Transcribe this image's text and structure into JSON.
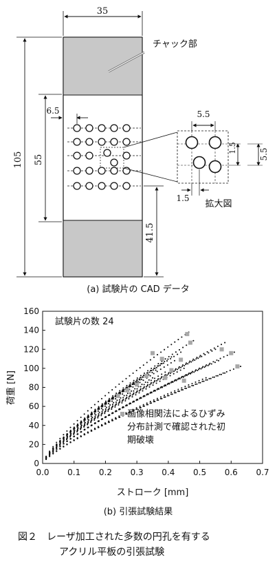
{
  "figure_a": {
    "dimensions": {
      "width": "35",
      "height": "105",
      "hole_region": "55",
      "offset_left": "6.5",
      "offset_bottom": "41.5",
      "detail_pitch": "5.5",
      "detail_hole_gap": "1.5",
      "detail_right_small": "1.5",
      "detail_right_big": "5.5",
      "detail_bottom": "1.5"
    },
    "label_chuck": "チャック部",
    "label_detail": "拡大図",
    "caption": "(a) 試験片の CAD データ"
  },
  "figure_b": {
    "count_label": "試験片の数 24",
    "legend_label_1": "画像相関法によるひずみ",
    "legend_label_2": "分布計測で確認された初",
    "legend_label_3": "期破壊",
    "caption": "(b) 引張試験結果"
  },
  "figure_caption_line1": "図２　レーザ加工された多数の円孔を有する",
  "figure_caption_line2": "アクリル平板の引張試験",
  "chart_data": {
    "type": "scatter",
    "xlabel": "ストローク [mm]",
    "ylabel": "荷重 [N]",
    "xlim": [
      0,
      0.7
    ],
    "ylim": [
      0,
      160
    ],
    "x_ticks": [
      "0.0",
      "0.1",
      "0.2",
      "0.3",
      "0.4",
      "0.5",
      "0.6",
      "0.7"
    ],
    "y_ticks": [
      "0",
      "20",
      "40",
      "60",
      "80",
      "100",
      "120",
      "140",
      "160"
    ],
    "curves": [
      {
        "end_x": 0.465,
        "end_y": 138
      },
      {
        "end_x": 0.48,
        "end_y": 129
      },
      {
        "end_x": 0.44,
        "end_y": 117
      },
      {
        "end_x": 0.58,
        "end_y": 127
      },
      {
        "end_x": 0.55,
        "end_y": 120
      },
      {
        "end_x": 0.61,
        "end_y": 117
      },
      {
        "end_x": 0.56,
        "end_y": 108
      },
      {
        "end_x": 0.63,
        "end_y": 102
      },
      {
        "end_x": 0.58,
        "end_y": 95
      },
      {
        "end_x": 0.52,
        "end_y": 90
      },
      {
        "end_x": 0.41,
        "end_y": 112
      },
      {
        "end_x": 0.38,
        "end_y": 105
      },
      {
        "end_x": 0.36,
        "end_y": 98
      },
      {
        "end_x": 0.33,
        "end_y": 93
      },
      {
        "end_x": 0.31,
        "end_y": 88
      },
      {
        "end_x": 0.45,
        "end_y": 100
      },
      {
        "end_x": 0.47,
        "end_y": 95
      },
      {
        "end_x": 0.29,
        "end_y": 84
      },
      {
        "end_x": 0.5,
        "end_y": 112
      },
      {
        "end_x": 0.42,
        "end_y": 108
      },
      {
        "end_x": 0.39,
        "end_y": 96
      },
      {
        "end_x": 0.35,
        "end_y": 90
      },
      {
        "end_x": 0.53,
        "end_y": 104
      },
      {
        "end_x": 0.27,
        "end_y": 80
      }
    ],
    "initial_failures": [
      {
        "x": 0.46,
        "y": 136
      },
      {
        "x": 0.47,
        "y": 127
      },
      {
        "x": 0.57,
        "y": 120
      },
      {
        "x": 0.6,
        "y": 116
      },
      {
        "x": 0.62,
        "y": 102
      },
      {
        "x": 0.33,
        "y": 92
      },
      {
        "x": 0.35,
        "y": 116
      },
      {
        "x": 0.38,
        "y": 110
      },
      {
        "x": 0.41,
        "y": 98
      },
      {
        "x": 0.45,
        "y": 87
      },
      {
        "x": 0.3,
        "y": 83
      },
      {
        "x": 0.27,
        "y": 77
      },
      {
        "x": 0.24,
        "y": 71
      },
      {
        "x": 0.39,
        "y": 90
      },
      {
        "x": 0.44,
        "y": 109
      }
    ]
  }
}
